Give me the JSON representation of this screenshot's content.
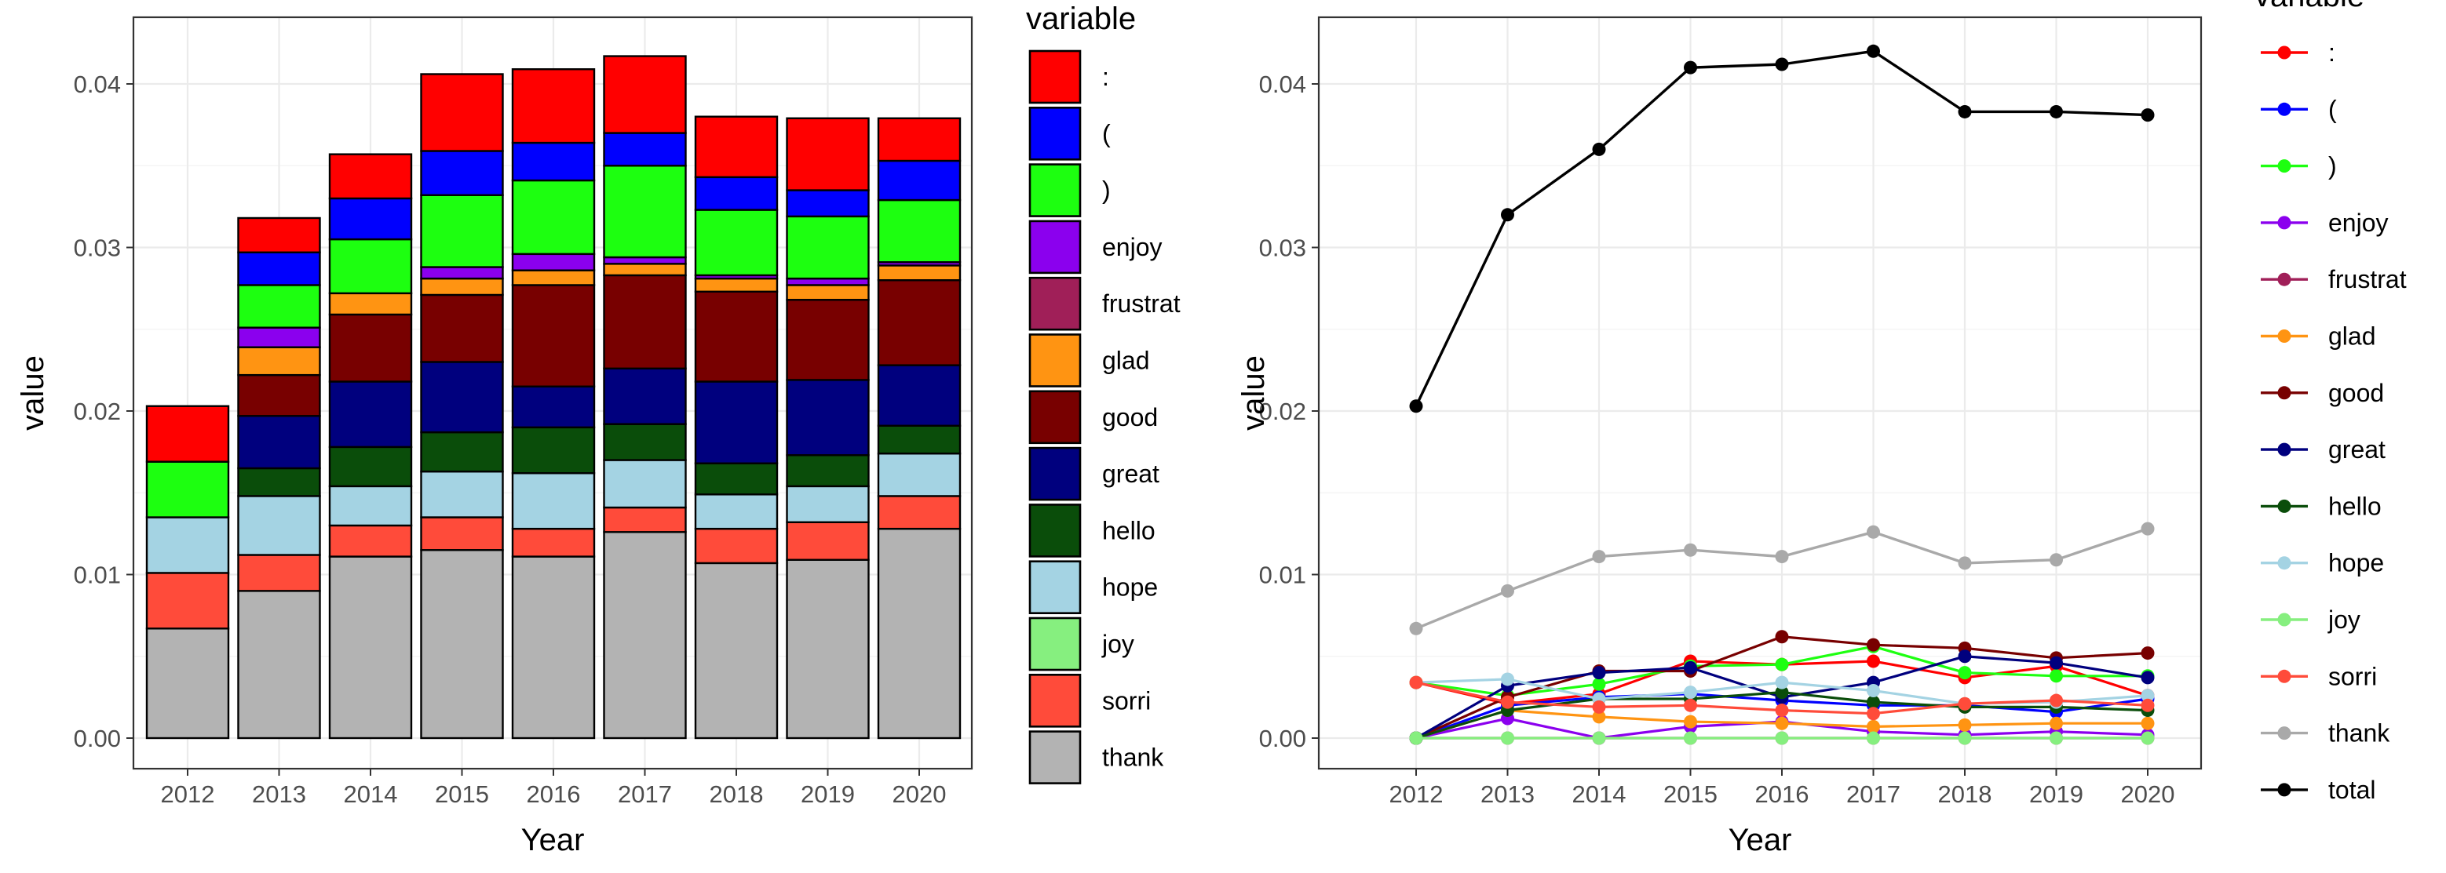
{
  "chart_data": [
    {
      "type": "bar",
      "stacked": true,
      "xlabel": "Year",
      "ylabel": "value",
      "ylim": [
        0,
        0.043
      ],
      "yticks": [
        "0.00",
        "0.01",
        "0.02",
        "0.03",
        "0.04"
      ],
      "categories": [
        "2012",
        "2013",
        "2014",
        "2015",
        "2016",
        "2017",
        "2018",
        "2019",
        "2020"
      ],
      "grid": true,
      "legend_title": "variable",
      "legend_position": "right",
      "series": [
        {
          "name": "thank",
          "color": "#b3b3b3",
          "values": [
            0.0067,
            0.009,
            0.0111,
            0.0115,
            0.0111,
            0.0126,
            0.0107,
            0.0109,
            0.0128
          ]
        },
        {
          "name": "sorri",
          "color": "#ff4b3a",
          "values": [
            0.0034,
            0.0022,
            0.0019,
            0.002,
            0.0017,
            0.0015,
            0.0021,
            0.0023,
            0.002
          ]
        },
        {
          "name": "joy",
          "color": "#86ef7f",
          "values": [
            0.0,
            0.0,
            0.0,
            0.0,
            0.0,
            0.0,
            0.0,
            0.0,
            0.0
          ]
        },
        {
          "name": "hope",
          "color": "#a4d3e3",
          "values": [
            0.0034,
            0.0036,
            0.0024,
            0.0028,
            0.0034,
            0.0029,
            0.0021,
            0.0022,
            0.0026
          ]
        },
        {
          "name": "hello",
          "color": "#0a4d0a",
          "values": [
            0.0,
            0.0017,
            0.0024,
            0.0024,
            0.0028,
            0.0022,
            0.0019,
            0.0019,
            0.0017
          ]
        },
        {
          "name": "great",
          "color": "#00007e",
          "values": [
            0.0,
            0.0032,
            0.004,
            0.0043,
            0.0025,
            0.0034,
            0.005,
            0.0046,
            0.0037
          ]
        },
        {
          "name": "good",
          "color": "#780000",
          "values": [
            0.0,
            0.0025,
            0.0041,
            0.0041,
            0.0062,
            0.0057,
            0.0055,
            0.0049,
            0.0052
          ]
        },
        {
          "name": "glad",
          "color": "#ff9412",
          "values": [
            0.0,
            0.0017,
            0.0013,
            0.001,
            0.0009,
            0.0007,
            0.0008,
            0.0009,
            0.0009
          ]
        },
        {
          "name": "frustrat",
          "color": "#a01f58",
          "values": [
            0.0,
            0.0,
            0.0,
            0.0,
            0.0,
            0.0,
            0.0,
            0.0,
            0.0
          ]
        },
        {
          "name": "enjoy",
          "color": "#8b00ee",
          "values": [
            0.0,
            0.0012,
            0.0,
            0.0007,
            0.001,
            0.0004,
            0.0002,
            0.0004,
            0.0002
          ]
        },
        {
          "name": ")",
          "color": "#1dff10",
          "values": [
            0.0034,
            0.0026,
            0.0033,
            0.0044,
            0.0045,
            0.0056,
            0.004,
            0.0038,
            0.0038
          ]
        },
        {
          "name": "(",
          "color": "#0000fe",
          "values": [
            0.0,
            0.002,
            0.0025,
            0.0027,
            0.0023,
            0.002,
            0.002,
            0.0016,
            0.0024
          ]
        },
        {
          "name": ":",
          "color": "#ff0000",
          "values": [
            0.0034,
            0.0021,
            0.0027,
            0.0047,
            0.0045,
            0.0047,
            0.0037,
            0.0044,
            0.0026
          ]
        }
      ]
    },
    {
      "type": "line",
      "xlabel": "Year",
      "ylabel": "value",
      "ylim": [
        -0.0015,
        0.0435
      ],
      "yticks": [
        "0.00",
        "0.01",
        "0.02",
        "0.03",
        "0.04"
      ],
      "categories": [
        "2012",
        "2013",
        "2014",
        "2015",
        "2016",
        "2017",
        "2018",
        "2019",
        "2020"
      ],
      "grid": true,
      "legend_title": "variable",
      "legend_position": "right",
      "series": [
        {
          "name": ":",
          "color": "#ff0000",
          "values": [
            0.0034,
            0.0021,
            0.0027,
            0.0047,
            0.0045,
            0.0047,
            0.0037,
            0.0044,
            0.0026
          ]
        },
        {
          "name": "(",
          "color": "#0000fe",
          "values": [
            0.0,
            0.002,
            0.0025,
            0.0027,
            0.0023,
            0.002,
            0.002,
            0.0016,
            0.0024
          ]
        },
        {
          "name": ")",
          "color": "#1dff10",
          "values": [
            0.0034,
            0.0026,
            0.0033,
            0.0044,
            0.0045,
            0.0056,
            0.004,
            0.0038,
            0.0038
          ]
        },
        {
          "name": "enjoy",
          "color": "#8b00ee",
          "values": [
            0.0,
            0.0012,
            0.0,
            0.0007,
            0.001,
            0.0004,
            0.0002,
            0.0004,
            0.0002
          ]
        },
        {
          "name": "frustrat",
          "color": "#a01f58",
          "values": [
            0.0,
            0.0,
            0.0,
            0.0,
            0.0,
            0.0,
            0.0,
            0.0,
            0.0
          ]
        },
        {
          "name": "glad",
          "color": "#ff9412",
          "values": [
            0.0,
            0.0017,
            0.0013,
            0.001,
            0.0009,
            0.0007,
            0.0008,
            0.0009,
            0.0009
          ]
        },
        {
          "name": "good",
          "color": "#780000",
          "values": [
            0.0,
            0.0025,
            0.0041,
            0.0041,
            0.0062,
            0.0057,
            0.0055,
            0.0049,
            0.0052
          ]
        },
        {
          "name": "great",
          "color": "#00007e",
          "values": [
            0.0,
            0.0032,
            0.004,
            0.0043,
            0.0025,
            0.0034,
            0.005,
            0.0046,
            0.0037
          ]
        },
        {
          "name": "hello",
          "color": "#0a4d0a",
          "values": [
            0.0,
            0.0017,
            0.0024,
            0.0024,
            0.0028,
            0.0022,
            0.0019,
            0.0019,
            0.0017
          ]
        },
        {
          "name": "hope",
          "color": "#a4d3e3",
          "values": [
            0.0034,
            0.0036,
            0.0024,
            0.0028,
            0.0034,
            0.0029,
            0.0021,
            0.0022,
            0.0026
          ]
        },
        {
          "name": "joy",
          "color": "#86ef7f",
          "values": [
            0.0,
            0.0,
            0.0,
            0.0,
            0.0,
            0.0,
            0.0,
            0.0,
            0.0
          ]
        },
        {
          "name": "sorri",
          "color": "#ff4b3a",
          "values": [
            0.0034,
            0.0022,
            0.0019,
            0.002,
            0.0017,
            0.0015,
            0.0021,
            0.0023,
            0.002
          ]
        },
        {
          "name": "thank",
          "color": "#a9a9a9",
          "values": [
            0.0067,
            0.009,
            0.0111,
            0.0115,
            0.0111,
            0.0126,
            0.0107,
            0.0109,
            0.0128
          ]
        },
        {
          "name": "total",
          "color": "#000000",
          "values": [
            0.0203,
            0.032,
            0.036,
            0.041,
            0.0412,
            0.042,
            0.0383,
            0.0383,
            0.0381
          ]
        }
      ]
    }
  ]
}
